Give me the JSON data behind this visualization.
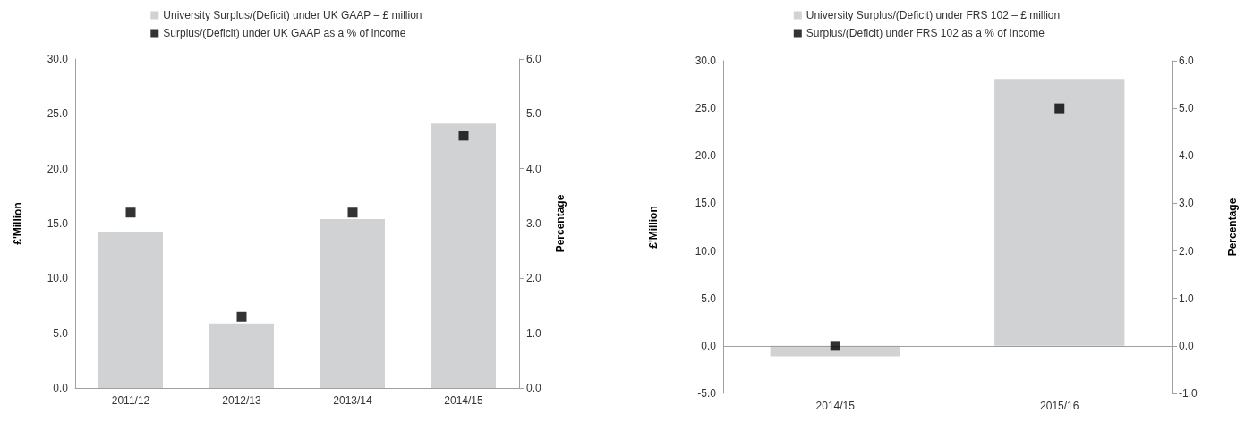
{
  "chart_data": [
    {
      "type": "bar",
      "categories": [
        "2011/12",
        "2012/13",
        "2013/14",
        "2014/15"
      ],
      "ylabel": "£'Million",
      "y2label": "Percentage",
      "series": [
        {
          "name": "University Surplus/(Deficit) under UK GAAP – £ million",
          "color": "#d1d2d4",
          "values": [
            14.2,
            5.9,
            15.4,
            24.1
          ]
        },
        {
          "name": "Surplus/(Deficit) under UK GAAP as a % of income",
          "type": "scatter",
          "axis": "y2",
          "color": "#000000",
          "values": [
            3.2,
            1.3,
            3.2,
            4.6
          ]
        }
      ],
      "ylim": [
        0,
        30
      ],
      "yticks": [
        {
          "value": 0,
          "label": "0.0"
        },
        {
          "value": 5,
          "label": "5.0"
        },
        {
          "value": 10,
          "label": "10.0"
        },
        {
          "value": 15,
          "label": "15.0"
        },
        {
          "value": 20,
          "label": "20.0"
        },
        {
          "value": 25,
          "label": "25.0"
        },
        {
          "value": 30,
          "label": "30.0"
        }
      ],
      "y2lim": [
        0,
        6
      ],
      "y2ticks": [
        {
          "value": 0,
          "label": "0.0"
        },
        {
          "value": 1,
          "label": "1.0"
        },
        {
          "value": 2,
          "label": "2.0"
        },
        {
          "value": 3,
          "label": "3.0"
        },
        {
          "value": 4,
          "label": "4.0"
        },
        {
          "value": 5,
          "label": "5.0"
        },
        {
          "value": 6,
          "label": "6.0"
        }
      ],
      "marker": "square",
      "legend": "top",
      "grid": false
    },
    {
      "type": "bar",
      "categories": [
        "2014/15",
        "2015/16"
      ],
      "ylabel": "£'Million",
      "y2label": "Percentage",
      "series": [
        {
          "name": "University Surplus/(Deficit) under FRS 102 – £ million",
          "color": "#d1d2d4",
          "values": [
            -1.1,
            28.1
          ]
        },
        {
          "name": "Surplus/(Deficit) under FRS 102 as a % of Income",
          "type": "scatter",
          "axis": "y2",
          "color": "#000000",
          "values": [
            0.0,
            5.0
          ]
        }
      ],
      "ylim": [
        -5,
        30
      ],
      "yticks": [
        {
          "value": -5,
          "label": "-5.0"
        },
        {
          "value": 0,
          "label": "0.0"
        },
        {
          "value": 5,
          "label": "5.0"
        },
        {
          "value": 10,
          "label": "10.0"
        },
        {
          "value": 15,
          "label": "15.0"
        },
        {
          "value": 20,
          "label": "20.0"
        },
        {
          "value": 25,
          "label": "25.0"
        },
        {
          "value": 30,
          "label": "30.0"
        }
      ],
      "y2lim": [
        -1,
        6
      ],
      "y2ticks": [
        {
          "value": -1,
          "label": "-1.0"
        },
        {
          "value": 0,
          "label": "0.0"
        },
        {
          "value": 1,
          "label": "1.0"
        },
        {
          "value": 2,
          "label": "2.0"
        },
        {
          "value": 3,
          "label": "3.0"
        },
        {
          "value": 4,
          "label": "4.0"
        },
        {
          "value": 5,
          "label": "5.0"
        },
        {
          "value": 6,
          "label": "6.0"
        }
      ],
      "ref_lines": [
        {
          "axis": "y",
          "value": 0,
          "color": "#a0a0a0"
        }
      ],
      "marker": "square",
      "legend": "top",
      "grid": false
    }
  ]
}
